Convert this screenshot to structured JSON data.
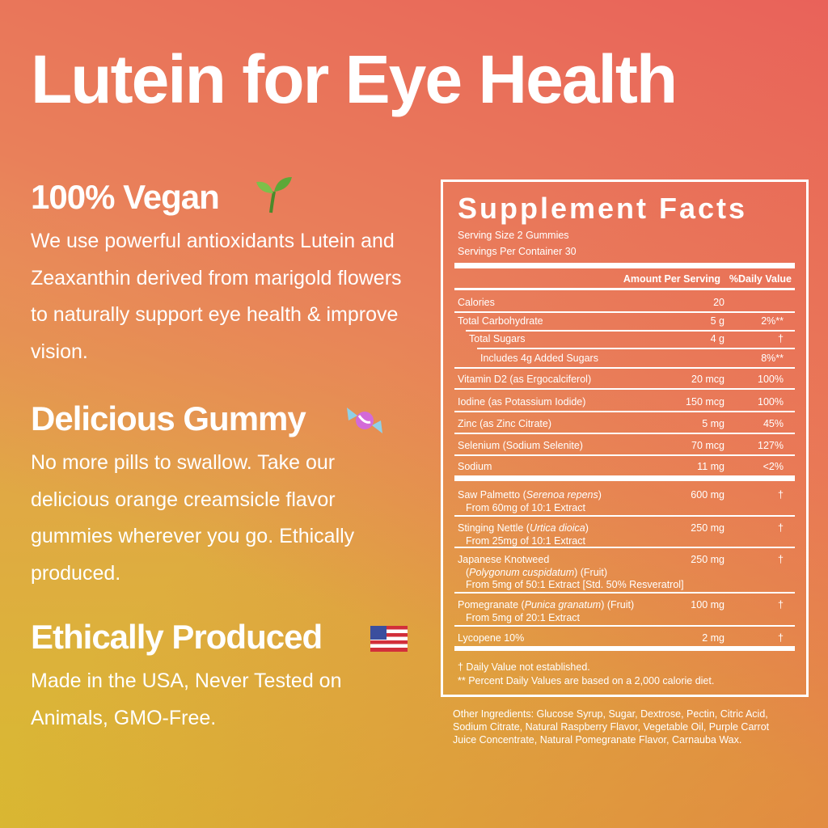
{
  "title": "Lutein for Eye Health",
  "features": [
    {
      "heading": "100% Vegan",
      "body": "We use powerful antioxidants Lutein and Zeaxanthin derived from marigold flowers to naturally support eye health & improve vision."
    },
    {
      "heading": "Delicious Gummy",
      "body": "No more pills to swallow. Take our delicious orange creamsicle flavor gummies wherever you go. Ethically produced."
    },
    {
      "heading": "Ethically Produced",
      "body": "Made in the USA, Never Tested on Animals, GMO-Free."
    }
  ],
  "facts": {
    "title": "Supplement Facts",
    "serving_size": "Serving Size 2 Gummies",
    "servings_per_container": "Servings Per Container 30",
    "header": [
      "Amount Per Serving",
      "%Daily Value"
    ],
    "rows": [
      [
        "Calories",
        "20",
        ""
      ],
      [
        "Total Carbohydrate",
        "5 g",
        "2%**"
      ],
      [
        "Total Sugars",
        "4 g",
        "†"
      ],
      [
        "Includes 4g Added Sugars",
        "",
        "8%**"
      ],
      [
        "Vitamin D2 (as Ergocalciferol)",
        "20 mcg",
        "100%"
      ],
      [
        "Iodine (as Potassium Iodide)",
        "150 mcg",
        "100%"
      ],
      [
        "Zinc (as Zinc Citrate)",
        "5 mg",
        "45%"
      ],
      [
        "Selenium (Sodium Selenite)",
        "70 mcg",
        "127%"
      ],
      [
        "Sodium",
        "11 mg",
        "<2%"
      ]
    ],
    "herbs": [
      {
        "name": "Saw Palmetto (",
        "latin": "Serenoa repens",
        "after": ")",
        "detail": "From 60mg of 10:1 Extract",
        "amount": "600 mg",
        "dv": "†"
      },
      {
        "name": "Stinging Nettle (",
        "latin": "Urtica dioica",
        "after": ")",
        "detail": "From 25mg of 10:1 Extract",
        "amount": "250 mg",
        "dv": "†"
      },
      {
        "name": "Japanese Knotweed",
        "pre": "(",
        "latin": "Polygonum cuspidatum",
        "after": ") (Fruit)",
        "detail": "From 5mg of 50:1 Extract [Std. 50% Resveratrol]",
        "amount": "250 mg",
        "dv": "†"
      },
      {
        "name": "Pomegranate (",
        "latin": "Punica granatum",
        "after": ") (Fruit)",
        "detail": "From 5mg of 20:1 Extract",
        "amount": "100 mg",
        "dv": "†"
      },
      {
        "name": "Lycopene 10%",
        "amount": "2 mg",
        "dv": "†"
      }
    ],
    "footnotes": [
      "† Daily Value not established.",
      "** Percent Daily Values are based on a 2,000 calorie diet."
    ]
  },
  "other_ingredients": "Other Ingredients: Glucose Syrup, Sugar, Dextrose, Pectin, Citric Acid, Sodium Citrate, Natural Raspberry Flavor, Vegetable Oil, Purple Carrot Juice Concentrate, Natural Pomegranate Flavor, Carnauba Wax."
}
